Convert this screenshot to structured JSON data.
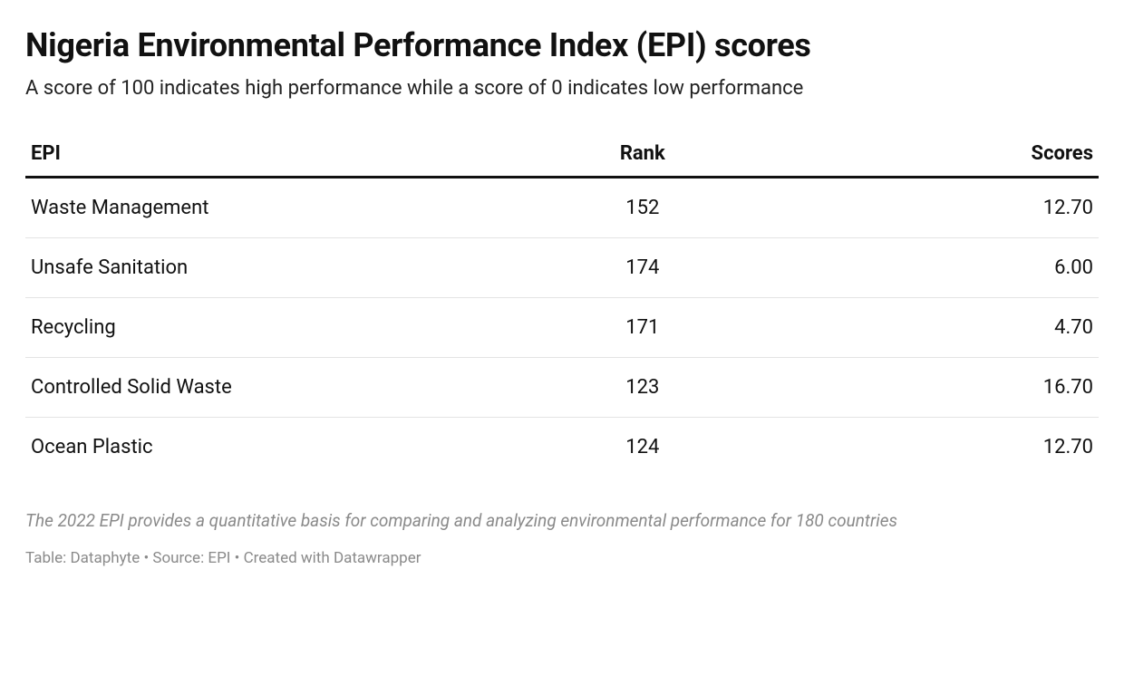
{
  "header": {
    "title": "Nigeria Environmental Performance Index (EPI) scores",
    "subtitle": "A score of 100 indicates high performance while a score of 0 indicates low performance"
  },
  "table": {
    "columns": {
      "epi": "EPI",
      "rank": "Rank",
      "scores": "Scores"
    },
    "col_widths": {
      "epi": "49%",
      "rank": "17%",
      "scores": "34%"
    },
    "header_border_color": "#111111",
    "row_border_color": "#e4e4e4",
    "rows": [
      {
        "epi": "Waste Management",
        "rank": "152",
        "score": "12.70"
      },
      {
        "epi": "Unsafe Sanitation",
        "rank": "174",
        "score": "6.00"
      },
      {
        "epi": "Recycling",
        "rank": "171",
        "score": "4.70"
      },
      {
        "epi": "Controlled Solid Waste",
        "rank": "123",
        "score": "16.70"
      },
      {
        "epi": "Ocean Plastic",
        "rank": "124",
        "score": "12.70"
      }
    ]
  },
  "footnote": "The 2022 EPI provides a quantitative basis for comparing and analyzing environmental performance for 180 countries",
  "credit": "Table: Dataphyte • Source: EPI • Created with Datawrapper",
  "style": {
    "background_color": "#ffffff",
    "title_color": "#111111",
    "title_fontsize": 36,
    "title_fontweight": 700,
    "subtitle_color": "#222222",
    "subtitle_fontsize": 22,
    "cell_fontsize": 22,
    "footnote_color": "#8a8a8a",
    "footnote_fontsize": 19,
    "credit_color": "#8a8a8a",
    "credit_fontsize": 17
  }
}
